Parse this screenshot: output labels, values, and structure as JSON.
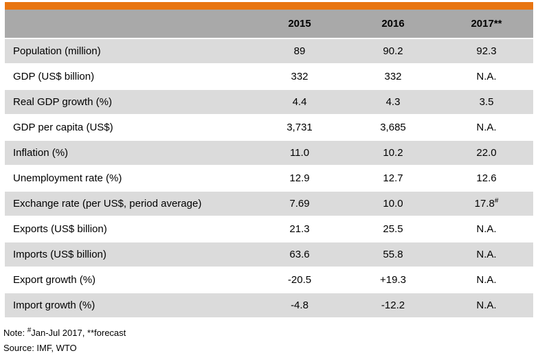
{
  "colors": {
    "accent_orange": "#E87511",
    "header_gray": "#A9A9A9",
    "row_stripe_gray": "#DBDBDB",
    "row_white": "#FFFFFF",
    "text": "#000000"
  },
  "chart_data": {
    "type": "table",
    "columns": [
      "",
      "2015",
      "2016",
      "2017**"
    ],
    "rows": [
      {
        "label": "Population (million)",
        "values": [
          "89",
          "90.2",
          "92.3"
        ],
        "sups": [
          "",
          "",
          ""
        ]
      },
      {
        "label": "GDP (US$ billion)",
        "values": [
          "332",
          "332",
          "N.A."
        ],
        "sups": [
          "",
          "",
          ""
        ]
      },
      {
        "label": "Real GDP growth (%)",
        "values": [
          "4.4",
          "4.3",
          "3.5"
        ],
        "sups": [
          "",
          "",
          ""
        ]
      },
      {
        "label": "GDP per capita (US$)",
        "values": [
          "3,731",
          "3,685",
          "N.A."
        ],
        "sups": [
          "",
          "",
          ""
        ]
      },
      {
        "label": "Inflation (%)",
        "values": [
          "11.0",
          "10.2",
          "22.0"
        ],
        "sups": [
          "",
          "",
          ""
        ]
      },
      {
        "label": "Unemployment rate (%)",
        "values": [
          "12.9",
          "12.7",
          "12.6"
        ],
        "sups": [
          "",
          "",
          ""
        ]
      },
      {
        "label": "Exchange rate (per US$, period average)",
        "values": [
          "7.69",
          "10.0",
          "17.8"
        ],
        "sups": [
          "",
          "",
          "#"
        ]
      },
      {
        "label": "Exports (US$ billion)",
        "values": [
          "21.3",
          "25.5",
          "N.A."
        ],
        "sups": [
          "",
          "",
          ""
        ]
      },
      {
        "label": "Imports (US$ billion)",
        "values": [
          "63.6",
          "55.8",
          "N.A."
        ],
        "sups": [
          "",
          "",
          ""
        ]
      },
      {
        "label": "Export growth (%)",
        "values": [
          "-20.5",
          "+19.3",
          "N.A."
        ],
        "sups": [
          "",
          "",
          ""
        ]
      },
      {
        "label": "Import growth (%)",
        "values": [
          "-4.8",
          "-12.2",
          "N.A."
        ],
        "sups": [
          "",
          "",
          ""
        ]
      }
    ],
    "notes": [
      "Note: #Jan-Jul 2017, **forecast",
      "Source: IMF, WTO"
    ]
  },
  "footnotes": {
    "note_prefix": "Note: ",
    "note_sup": "#",
    "note_rest": "Jan-Jul 2017, **forecast",
    "source": "Source: IMF, WTO"
  }
}
